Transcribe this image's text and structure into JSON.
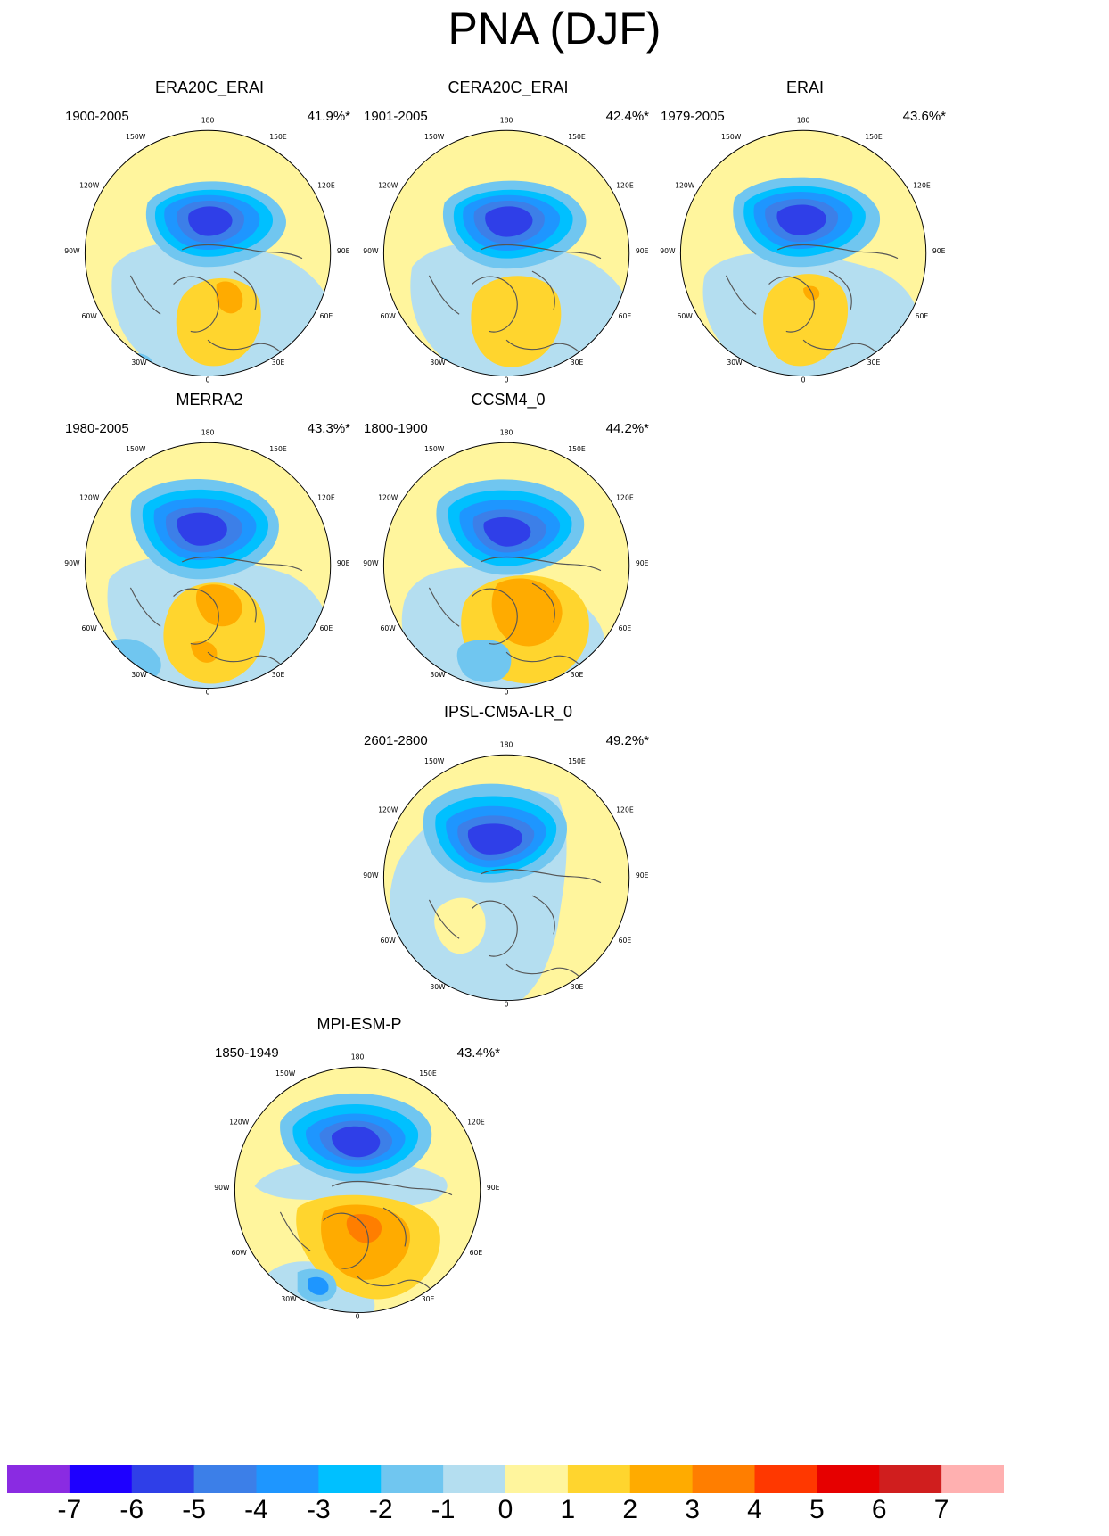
{
  "title": "PNA (DJF)",
  "panels": [
    {
      "name": "ERA20C_ERAI",
      "period": "1900-2005",
      "percent": "41.9%*"
    },
    {
      "name": "CERA20C_ERAI",
      "period": "1901-2005",
      "percent": "42.4%*"
    },
    {
      "name": "ERAI",
      "period": "1979-2005",
      "percent": "43.6%*"
    },
    {
      "name": "MERRA2",
      "period": "1980-2005",
      "percent": "43.3%*"
    },
    {
      "name": "CCSM4_0",
      "period": "1800-1900",
      "percent": "44.2%*"
    },
    {
      "name": "IPSL-CM5A-LR_0",
      "period": "2601-2800",
      "percent": "49.2%*"
    },
    {
      "name": "MPI-ESM-P",
      "period": "1850-1949",
      "percent": "43.4%*"
    }
  ],
  "longitude_labels": [
    "180",
    "150E",
    "120E",
    "90E",
    "60E",
    "30E",
    "0",
    "30W",
    "60W",
    "90W",
    "120W",
    "150W"
  ],
  "colorbar": {
    "colors": [
      "#8a2be2",
      "#1e00ff",
      "#2f3fe8",
      "#3c7fe8",
      "#1e96ff",
      "#00c0ff",
      "#70c6f0",
      "#b4def0",
      "#fff59d",
      "#ffd52e",
      "#ffab00",
      "#ff7e00",
      "#ff3800",
      "#e60000",
      "#d01e1e",
      "#ffb0b0"
    ],
    "labels": [
      "-7",
      "-6",
      "-5",
      "-4",
      "-3",
      "-2",
      "-1",
      "0",
      "1",
      "2",
      "3",
      "4",
      "5",
      "6",
      "7"
    ]
  }
}
